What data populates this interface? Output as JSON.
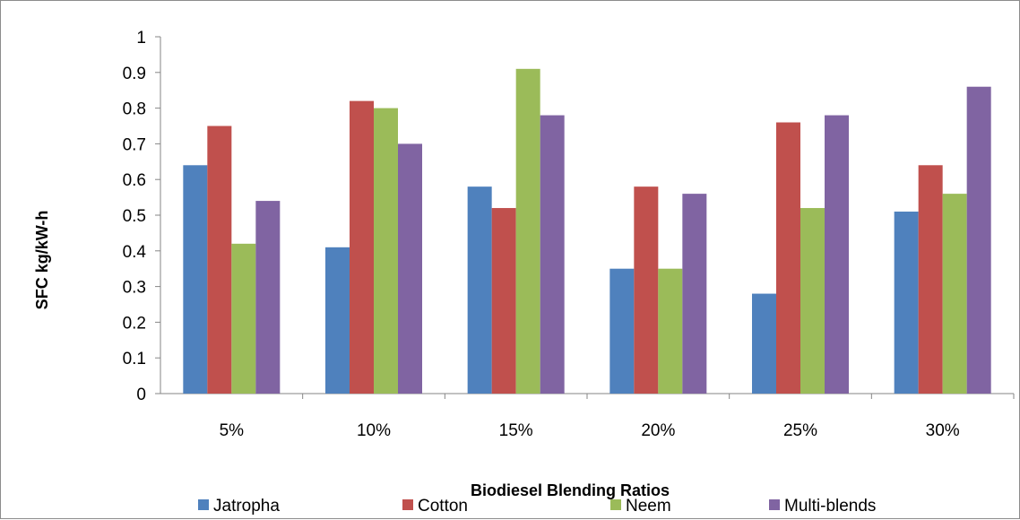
{
  "chart_data": {
    "type": "bar",
    "categories": [
      "5%",
      "10%",
      "15%",
      "20%",
      "25%",
      "30%"
    ],
    "series": [
      {
        "name": "Jatropha",
        "color": "#4F81BD",
        "values": [
          0.64,
          0.41,
          0.58,
          0.35,
          0.28,
          0.51
        ]
      },
      {
        "name": "Cotton",
        "color": "#C0504D",
        "values": [
          0.75,
          0.82,
          0.52,
          0.58,
          0.76,
          0.64
        ]
      },
      {
        "name": "Neem",
        "color": "#9BBB59",
        "values": [
          0.42,
          0.8,
          0.91,
          0.35,
          0.52,
          0.56
        ]
      },
      {
        "name": "Multi-blends",
        "color": "#8064A2",
        "values": [
          0.54,
          0.7,
          0.78,
          0.56,
          0.78,
          0.86
        ]
      }
    ],
    "xlabel": "Biodiesel Blending Ratios",
    "ylabel": "SFC kg/kW-h",
    "ylim": [
      0,
      1
    ],
    "yticks": [
      "0",
      "0.1",
      "0.2",
      "0.3",
      "0.4",
      "0.5",
      "0.6",
      "0.7",
      "0.8",
      "0.9",
      "1"
    ],
    "grid": false,
    "legend_position": "bottom"
  }
}
